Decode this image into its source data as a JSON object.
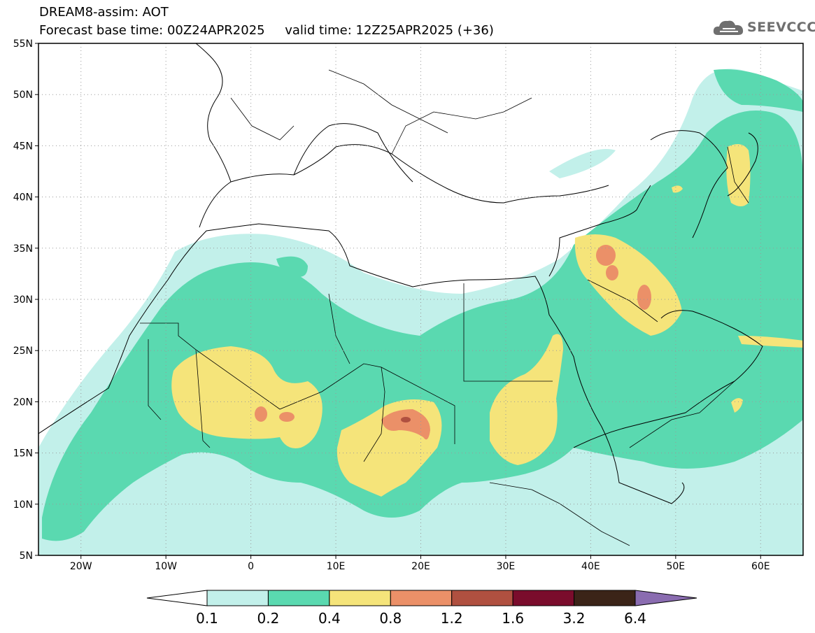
{
  "header": {
    "title_line1": "DREAM8-assim: AOT",
    "title_line2": "Forecast base time: 00Z24APR2025     valid time: 12Z25APR2025 (+36)",
    "logo_text": "SEEVCCC"
  },
  "map": {
    "lon_range": [
      -25,
      65
    ],
    "lat_range": [
      5,
      55
    ],
    "lat_ticks": [
      {
        "lat": 55,
        "label": "55N"
      },
      {
        "lat": 50,
        "label": "50N"
      },
      {
        "lat": 45,
        "label": "45N"
      },
      {
        "lat": 40,
        "label": "40N"
      },
      {
        "lat": 35,
        "label": "35N"
      },
      {
        "lat": 30,
        "label": "30N"
      },
      {
        "lat": 25,
        "label": "25N"
      },
      {
        "lat": 20,
        "label": "20N"
      },
      {
        "lat": 15,
        "label": "15N"
      },
      {
        "lat": 10,
        "label": "10N"
      },
      {
        "lat": 5,
        "label": "5N"
      }
    ],
    "lon_ticks": [
      {
        "lon": -20,
        "label": "20W"
      },
      {
        "lon": -10,
        "label": "10W"
      },
      {
        "lon": 0,
        "label": "0"
      },
      {
        "lon": 10,
        "label": "10E"
      },
      {
        "lon": 20,
        "label": "20E"
      },
      {
        "lon": 30,
        "label": "30E"
      },
      {
        "lon": 40,
        "label": "40E"
      },
      {
        "lon": 50,
        "label": "50E"
      },
      {
        "lon": 60,
        "label": "60E"
      }
    ],
    "gridlines": "dotted"
  },
  "colorbar": {
    "levels": [
      "0.1",
      "0.2",
      "0.4",
      "0.8",
      "1.2",
      "1.6",
      "3.2",
      "6.4"
    ],
    "colors": [
      "#ffffff",
      "#c2f0ea",
      "#5ad9b0",
      "#f5e47a",
      "#eb9068",
      "#b05040",
      "#7a0c2c",
      "#3b2418",
      "#8a6cb0"
    ]
  }
}
